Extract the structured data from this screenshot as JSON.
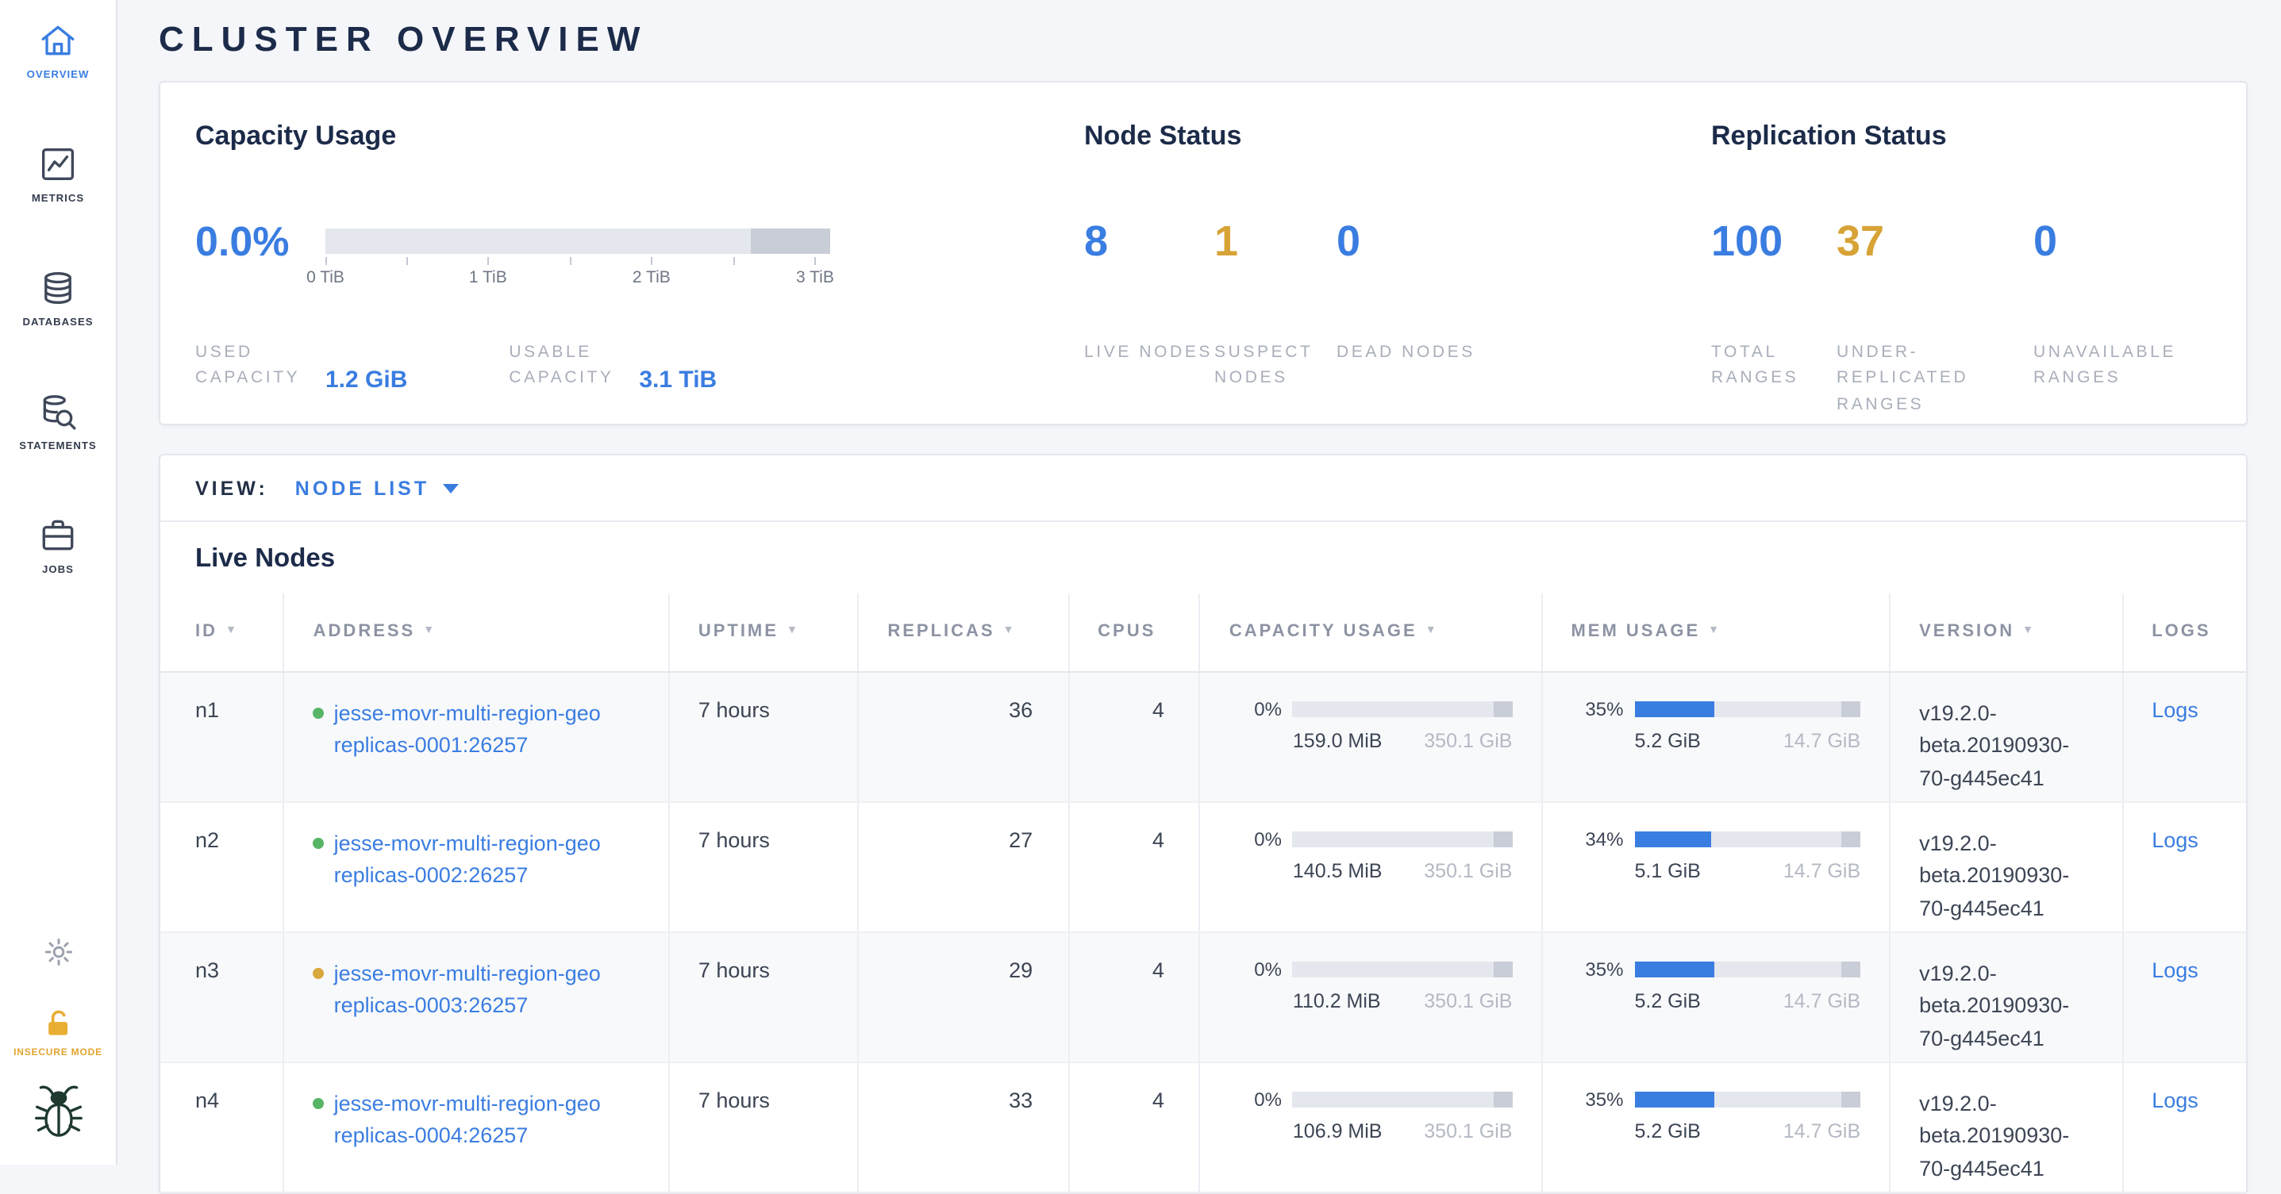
{
  "colors": {
    "accent_blue": "#3a7de1",
    "warning_yellow": "#d7a336",
    "live_dot_green": "#57b566",
    "suspect_dot_yellow": "#d9a83c"
  },
  "sidebar": {
    "items": [
      {
        "label": "OVERVIEW",
        "icon": "home-icon",
        "active": true
      },
      {
        "label": "METRICS",
        "icon": "metrics-chart-icon",
        "active": false
      },
      {
        "label": "DATABASES",
        "icon": "database-icon",
        "active": false
      },
      {
        "label": "STATEMENTS",
        "icon": "database-search-icon",
        "active": false
      },
      {
        "label": "JOBS",
        "icon": "briefcase-icon",
        "active": false
      }
    ],
    "settings_icon": "gear-icon",
    "insecure_label": "INSECURE MODE",
    "logo_icon": "cockroach-bug-logo"
  },
  "header": {
    "title": "CLUSTER OVERVIEW"
  },
  "summary": {
    "capacity": {
      "title": "Capacity Usage",
      "percent": "0.0%",
      "fill_pct": 0,
      "axis_ticks": [
        "0 TiB",
        "1 TiB",
        "2 TiB",
        "3 TiB"
      ],
      "used_label": "USED CAPACITY",
      "used_value": "1.2 GiB",
      "usable_label": "USABLE CAPACITY",
      "usable_value": "3.1 TiB"
    },
    "node_status": {
      "title": "Node Status",
      "stats": [
        {
          "value": "8",
          "label": "LIVE NODES",
          "color": "#3a7de1"
        },
        {
          "value": "1",
          "label": "SUSPECT NODES",
          "color": "#d7a336"
        },
        {
          "value": "0",
          "label": "DEAD NODES",
          "color": "#3a7de1"
        }
      ]
    },
    "replication": {
      "title": "Replication Status",
      "stats": [
        {
          "value": "100",
          "label": "TOTAL RANGES",
          "color": "#3a7de1"
        },
        {
          "value": "37",
          "label": "UNDER-REPLICATED RANGES",
          "color": "#d7a336"
        },
        {
          "value": "0",
          "label": "UNAVAILABLE RANGES",
          "color": "#3a7de1"
        }
      ]
    }
  },
  "view_bar": {
    "label": "VIEW:",
    "selected": "NODE LIST"
  },
  "live_nodes": {
    "title": "Live Nodes",
    "columns": [
      {
        "label": "ID",
        "sortable": true
      },
      {
        "label": "ADDRESS",
        "sortable": true
      },
      {
        "label": "UPTIME",
        "sortable": true
      },
      {
        "label": "REPLICAS",
        "sortable": true
      },
      {
        "label": "CPUS",
        "sortable": false
      },
      {
        "label": "CAPACITY USAGE",
        "sortable": true
      },
      {
        "label": "MEM USAGE",
        "sortable": true
      },
      {
        "label": "VERSION",
        "sortable": true
      },
      {
        "label": "LOGS",
        "sortable": false
      }
    ],
    "rows": [
      {
        "id": "n1",
        "dot_color": "#57b566",
        "address_line1": "jesse-movr-multi-region-geo",
        "address_line2": "replicas-0001:26257",
        "uptime": "7 hours",
        "replicas": "36",
        "cpus": "4",
        "cap_pct": "0%",
        "cap_fill_pct": 0,
        "cap_used": "159.0 MiB",
        "cap_total": "350.1 GiB",
        "mem_pct": "35%",
        "mem_fill_pct": 35,
        "mem_used": "5.2 GiB",
        "mem_total": "14.7 GiB",
        "version": "v19.2.0-beta.20190930-70-g445ec41",
        "logs_label": "Logs"
      },
      {
        "id": "n2",
        "dot_color": "#57b566",
        "address_line1": "jesse-movr-multi-region-geo",
        "address_line2": "replicas-0002:26257",
        "uptime": "7 hours",
        "replicas": "27",
        "cpus": "4",
        "cap_pct": "0%",
        "cap_fill_pct": 0,
        "cap_used": "140.5 MiB",
        "cap_total": "350.1 GiB",
        "mem_pct": "34%",
        "mem_fill_pct": 34,
        "mem_used": "5.1 GiB",
        "mem_total": "14.7 GiB",
        "version": "v19.2.0-beta.20190930-70-g445ec41",
        "logs_label": "Logs"
      },
      {
        "id": "n3",
        "dot_color": "#d9a83c",
        "address_line1": "jesse-movr-multi-region-geo",
        "address_line2": "replicas-0003:26257",
        "uptime": "7 hours",
        "replicas": "29",
        "cpus": "4",
        "cap_pct": "0%",
        "cap_fill_pct": 0,
        "cap_used": "110.2 MiB",
        "cap_total": "350.1 GiB",
        "mem_pct": "35%",
        "mem_fill_pct": 35,
        "mem_used": "5.2 GiB",
        "mem_total": "14.7 GiB",
        "version": "v19.2.0-beta.20190930-70-g445ec41",
        "logs_label": "Logs"
      },
      {
        "id": "n4",
        "dot_color": "#57b566",
        "address_line1": "jesse-movr-multi-region-geo",
        "address_line2": "replicas-0004:26257",
        "uptime": "7 hours",
        "replicas": "33",
        "cpus": "4",
        "cap_pct": "0%",
        "cap_fill_pct": 0,
        "cap_used": "106.9 MiB",
        "cap_total": "350.1 GiB",
        "mem_pct": "35%",
        "mem_fill_pct": 35,
        "mem_used": "5.2 GiB",
        "mem_total": "14.7 GiB",
        "version": "v19.2.0-beta.20190930-70-g445ec41",
        "logs_label": "Logs"
      }
    ]
  }
}
